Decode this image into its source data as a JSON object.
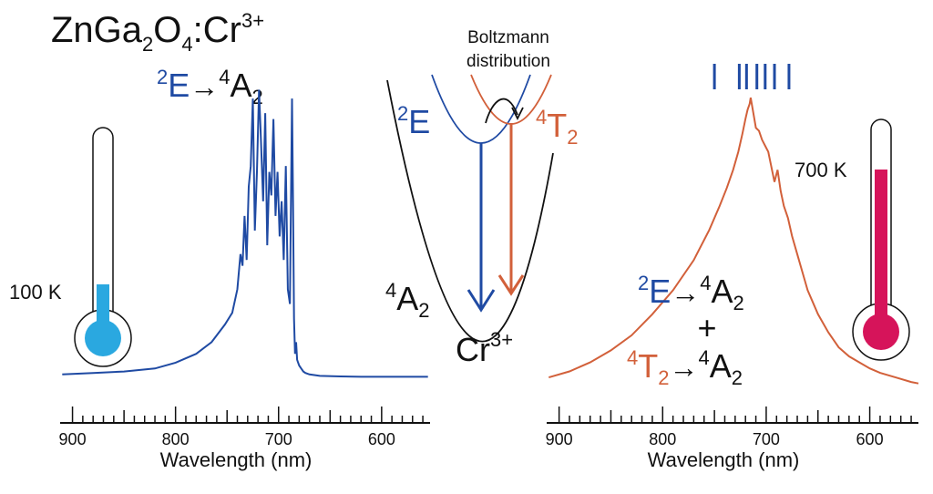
{
  "title": {
    "main": "ZnGa",
    "sub1": "2",
    "mid": "O",
    "sub2": "4",
    "tail": ":Cr",
    "sup": "3+"
  },
  "labels": {
    "left_transition": {
      "sup1": "2",
      "state1": "E",
      "arrow": "→",
      "sup2": "4",
      "state2": "A",
      "sub2": "2"
    },
    "boltzmann_line1": "Boltzmann",
    "boltzmann_line2": "distribution",
    "diag_2E": {
      "sup": "2",
      "text": "E"
    },
    "diag_4T2": {
      "sup": "4",
      "text": "T",
      "sub": "2"
    },
    "diag_4A2": {
      "sup": "4",
      "text": "A",
      "sub": "2"
    },
    "diag_cr": {
      "text": "Cr",
      "sup": "3+"
    },
    "temp_low": "100 K",
    "temp_high": "700 K",
    "right_t1": {
      "sup1": "2",
      "state1": "E",
      "arrow": "→",
      "sup2": "4",
      "state2": "A",
      "sub2": "2"
    },
    "plus": "+",
    "right_t2": {
      "sup1": "4",
      "state1": "T",
      "sub1": "2",
      "arrow": "→",
      "sup2": "4",
      "state2": "A",
      "sub2": "2"
    }
  },
  "colors": {
    "blue": "#1f4aa3",
    "orange": "#d2603a",
    "black": "#111111",
    "therm_cold": "#2aa8e0",
    "therm_hot": "#d6145a"
  },
  "chart_data": [
    {
      "type": "line",
      "xlabel": "Wavelength (nm)",
      "xlim": [
        912,
        553
      ],
      "x_ticks": [
        900,
        800,
        700,
        600
      ],
      "series": [
        {
          "color": "#1f4aa3",
          "x": [
            910,
            880,
            850,
            820,
            800,
            780,
            765,
            752,
            745,
            740,
            737,
            735,
            733,
            731,
            729,
            727,
            725,
            723,
            721,
            719,
            717,
            715,
            713,
            711,
            709,
            707,
            705,
            703,
            701,
            699,
            697,
            695,
            693,
            691,
            689,
            687,
            686,
            685,
            684,
            683,
            682,
            681,
            680,
            678,
            676,
            674,
            670,
            660,
            640,
            620,
            600,
            580,
            555
          ],
          "y": [
            0.01,
            0.015,
            0.02,
            0.03,
            0.05,
            0.08,
            0.12,
            0.18,
            0.22,
            0.3,
            0.42,
            0.38,
            0.55,
            0.4,
            0.65,
            0.72,
            0.95,
            0.5,
            0.7,
            0.98,
            0.8,
            0.6,
            0.9,
            0.45,
            0.7,
            0.62,
            0.88,
            0.55,
            0.7,
            0.48,
            0.6,
            0.4,
            0.72,
            0.3,
            0.25,
            0.95,
            0.6,
            0.2,
            0.08,
            0.12,
            0.06,
            0.05,
            0.04,
            0.03,
            0.02,
            0.015,
            0.01,
            0.005,
            0.003,
            0.002,
            0.002,
            0.002,
            0.002
          ]
        }
      ]
    },
    {
      "type": "line",
      "xlabel": "Wavelength (nm)",
      "xlim": [
        912,
        553
      ],
      "x_ticks": [
        900,
        800,
        700,
        600
      ],
      "marker_lines_nm": [
        750,
        726,
        719,
        709,
        701,
        692,
        678
      ],
      "series": [
        {
          "color": "#d2603a",
          "x": [
            910,
            890,
            870,
            850,
            830,
            810,
            790,
            770,
            755,
            745,
            738,
            732,
            727,
            723,
            720,
            718,
            716,
            715,
            713,
            710,
            707,
            704,
            701,
            698,
            695,
            692,
            689,
            686,
            683,
            679,
            675,
            670,
            665,
            660,
            650,
            640,
            630,
            620,
            610,
            600,
            590,
            575,
            560,
            553
          ],
          "y": [
            0.03,
            0.05,
            0.08,
            0.12,
            0.17,
            0.24,
            0.32,
            0.42,
            0.52,
            0.6,
            0.66,
            0.72,
            0.78,
            0.84,
            0.89,
            0.92,
            0.94,
            0.96,
            0.92,
            0.86,
            0.85,
            0.82,
            0.8,
            0.78,
            0.73,
            0.68,
            0.72,
            0.65,
            0.6,
            0.56,
            0.5,
            0.44,
            0.38,
            0.32,
            0.24,
            0.18,
            0.13,
            0.1,
            0.08,
            0.06,
            0.045,
            0.03,
            0.015,
            0.01
          ]
        }
      ]
    }
  ]
}
